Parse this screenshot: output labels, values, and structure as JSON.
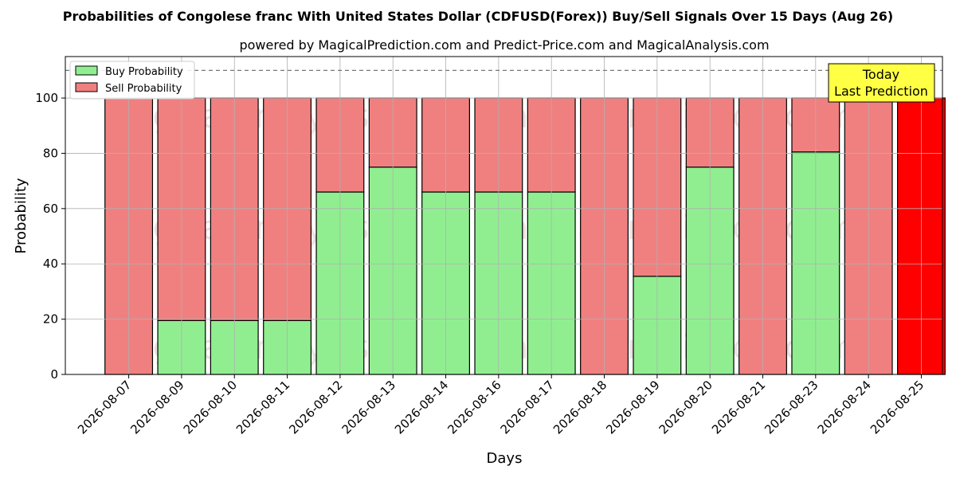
{
  "chart_data": {
    "type": "bar",
    "stacked": true,
    "title": "Probabilities of Congolese franc With United States Dollar (CDFUSD(Forex)) Buy/Sell Signals Over 15 Days (Aug 26)",
    "subtitle": "powered by MagicalPrediction.com and Predict-Price.com and MagicalAnalysis.com",
    "xlabel": "Days",
    "ylabel": "Probability",
    "ylim": [
      0,
      115
    ],
    "yticks": [
      0,
      20,
      40,
      60,
      80,
      100
    ],
    "grid": true,
    "legend_position": "top-left",
    "reference_line": 110,
    "categories": [
      "2026-08-07",
      "2026-08-09",
      "2026-08-10",
      "2026-08-11",
      "2026-08-12",
      "2026-08-13",
      "2026-08-14",
      "2026-08-16",
      "2026-08-17",
      "2026-08-18",
      "2026-08-19",
      "2026-08-20",
      "2026-08-21",
      "2026-08-23",
      "2026-08-24",
      "2026-08-25"
    ],
    "series": [
      {
        "name": "Buy Probability",
        "color": "#90ee90",
        "values": [
          0,
          19.5,
          19.5,
          19.5,
          66,
          75,
          66,
          66,
          66,
          0,
          35.5,
          75,
          0,
          80.5,
          0,
          0
        ]
      },
      {
        "name": "Sell Probability",
        "color": "#f08080",
        "values": [
          100,
          80.5,
          80.5,
          80.5,
          34,
          25,
          34,
          34,
          34,
          100,
          64.5,
          25,
          100,
          19.5,
          100,
          100
        ]
      }
    ],
    "highlight": {
      "index": 15,
      "color": "#ff0000",
      "label_line1": "Today",
      "label_line2": "Last Prediction",
      "box_color": "#ffff44"
    },
    "watermarks": [
      "MagicalAnalysis.com",
      "MagicalPrediction.com"
    ]
  }
}
